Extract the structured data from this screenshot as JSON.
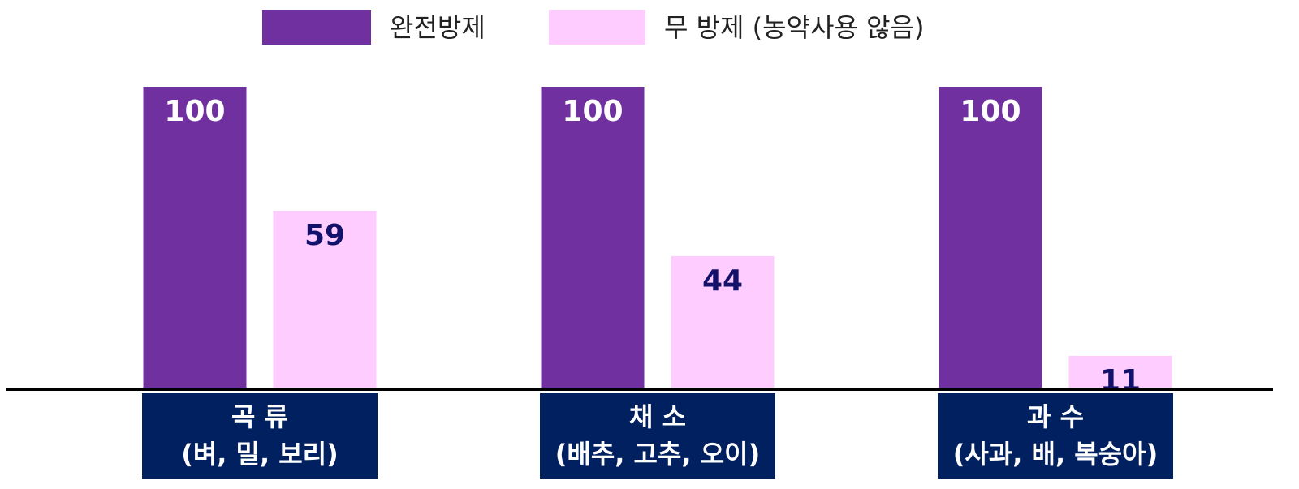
{
  "chart_data": {
    "type": "bar",
    "categories": [
      [
        "곡 류",
        "(벼, 밀, 보리)"
      ],
      [
        "채 소",
        "(배추, 고추, 오이)"
      ],
      [
        "과 수",
        "(사과, 배, 복숭아)"
      ]
    ],
    "series": [
      {
        "name": "완전방제",
        "color": "#7030a0",
        "label_color": "#ffffff",
        "values": [
          100,
          100,
          100
        ]
      },
      {
        "name": "무 방제 (농약사용 않음)",
        "color": "#ffccff",
        "label_color": "#12126b",
        "values": [
          59,
          44,
          11
        ]
      }
    ],
    "ylim": [
      0,
      100
    ]
  }
}
